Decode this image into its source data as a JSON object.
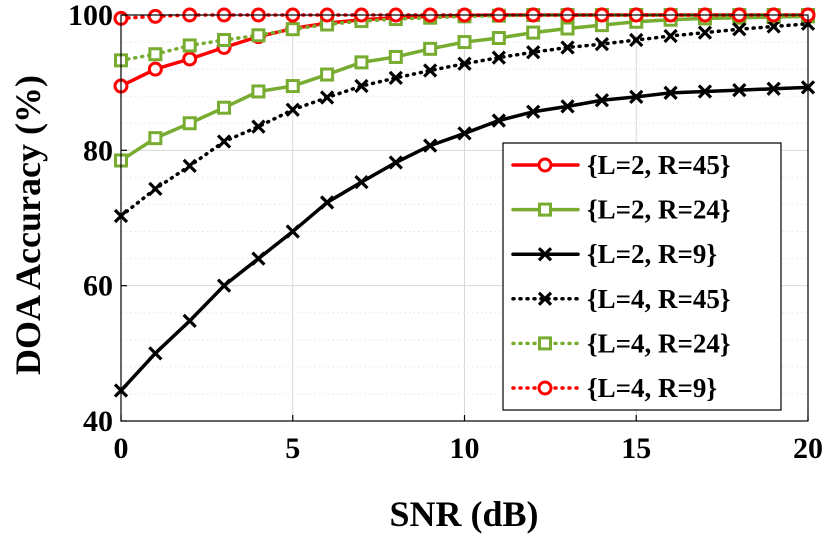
{
  "chart_data": {
    "type": "line",
    "title": "",
    "xlabel": "SNR (dB)",
    "ylabel": "DOA Accuracy (%)",
    "xlim": [
      0,
      20
    ],
    "ylim": [
      40,
      100
    ],
    "xticks": [
      "0",
      "5",
      "10",
      "15",
      "20"
    ],
    "yticks": [
      "40",
      "60",
      "80",
      "100"
    ],
    "grid": true,
    "legend_position": "right",
    "x": [
      0,
      1,
      2,
      3,
      4,
      5,
      6,
      7,
      8,
      9,
      10,
      11,
      12,
      13,
      14,
      15,
      16,
      17,
      18,
      19,
      20
    ],
    "series": [
      {
        "name": "{L=2, R=45}",
        "color": "#ff0000",
        "line": "solid",
        "marker": "circle",
        "values": [
          89.5,
          92.0,
          93.5,
          95.2,
          96.8,
          98.0,
          98.8,
          99.3,
          99.6,
          99.8,
          99.9,
          100,
          100,
          100,
          100,
          100,
          100,
          100,
          100,
          100,
          100
        ]
      },
      {
        "name": "{L=2, R=24}",
        "color": "#77ac30",
        "line": "solid",
        "marker": "square",
        "values": [
          78.5,
          81.8,
          84.0,
          86.3,
          88.7,
          89.5,
          91.2,
          93.0,
          93.8,
          95.0,
          96.0,
          96.6,
          97.4,
          98.0,
          98.5,
          99.0,
          99.3,
          99.5,
          99.6,
          99.7,
          99.8
        ]
      },
      {
        "name": "{L=2, R=9}",
        "color": "#000000",
        "line": "solid",
        "marker": "x",
        "values": [
          44.5,
          50.0,
          54.8,
          60.0,
          64.0,
          68.0,
          72.3,
          75.3,
          78.2,
          80.7,
          82.5,
          84.4,
          85.7,
          86.5,
          87.4,
          87.9,
          88.5,
          88.7,
          88.9,
          89.1,
          89.3
        ]
      },
      {
        "name": "{L=4, R=45}",
        "color": "#000000",
        "line": "dotted",
        "marker": "x",
        "values": [
          70.3,
          74.3,
          77.7,
          81.3,
          83.5,
          86.0,
          87.8,
          89.5,
          90.7,
          91.8,
          92.8,
          93.7,
          94.5,
          95.2,
          95.7,
          96.3,
          96.9,
          97.4,
          97.9,
          98.3,
          98.7
        ]
      },
      {
        "name": "{L=4, R=24}",
        "color": "#77ac30",
        "line": "dotted",
        "marker": "square",
        "values": [
          93.3,
          94.2,
          95.5,
          96.3,
          97.0,
          97.9,
          98.6,
          99.1,
          99.4,
          99.6,
          99.8,
          99.9,
          100,
          100,
          100,
          100,
          100,
          100,
          100,
          100,
          100
        ]
      },
      {
        "name": "{L=4, R=9}",
        "color": "#ff0000",
        "line": "dotted",
        "marker": "circle",
        "values": [
          99.5,
          99.8,
          100,
          100,
          100,
          100,
          100,
          100,
          100,
          100,
          100,
          100,
          100,
          100,
          100,
          100,
          100,
          100,
          100,
          100,
          100
        ]
      }
    ]
  }
}
